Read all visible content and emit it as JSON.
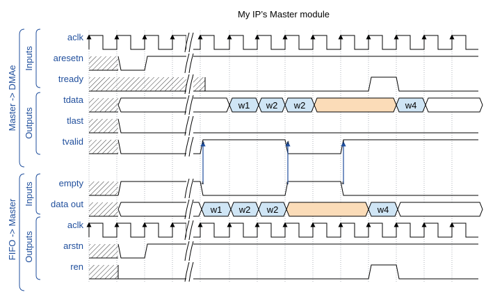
{
  "title": "My IP’s Master module",
  "colors": {
    "label": "#1f4e9c",
    "bus_blue": "#cfe5f5",
    "bus_orange": "#fbdcb8",
    "arrow": "#1f4e9c",
    "dotted": "#9aa0a8"
  },
  "groups": [
    {
      "outer": "Master -> DMAe",
      "inner": [
        "Inputs",
        "Outputs"
      ]
    },
    {
      "outer": "FIFO -> Master",
      "inner": [
        "Inputs",
        "Outputs"
      ]
    }
  ],
  "signals": [
    {
      "name": "aclk",
      "type": "clock"
    },
    {
      "name": "aresetn",
      "type": "reset"
    },
    {
      "name": "tready",
      "type": "ready"
    },
    {
      "name": "tdata",
      "type": "bus",
      "words": [
        "w1",
        "w2",
        "w2",
        "",
        "w4"
      ]
    },
    {
      "name": "tlast",
      "type": "low"
    },
    {
      "name": "tvalid",
      "type": "valid"
    },
    {
      "name": "empty",
      "type": "empty"
    },
    {
      "name": "data out",
      "type": "bus",
      "words": [
        "w1",
        "w2",
        "w2",
        "",
        "w4"
      ]
    },
    {
      "name": "aclk",
      "type": "clock"
    },
    {
      "name": "arstn",
      "type": "reset"
    },
    {
      "name": "ren",
      "type": "ready"
    }
  ],
  "events": [
    "a",
    "b",
    "c",
    "d",
    "e",
    "f"
  ]
}
